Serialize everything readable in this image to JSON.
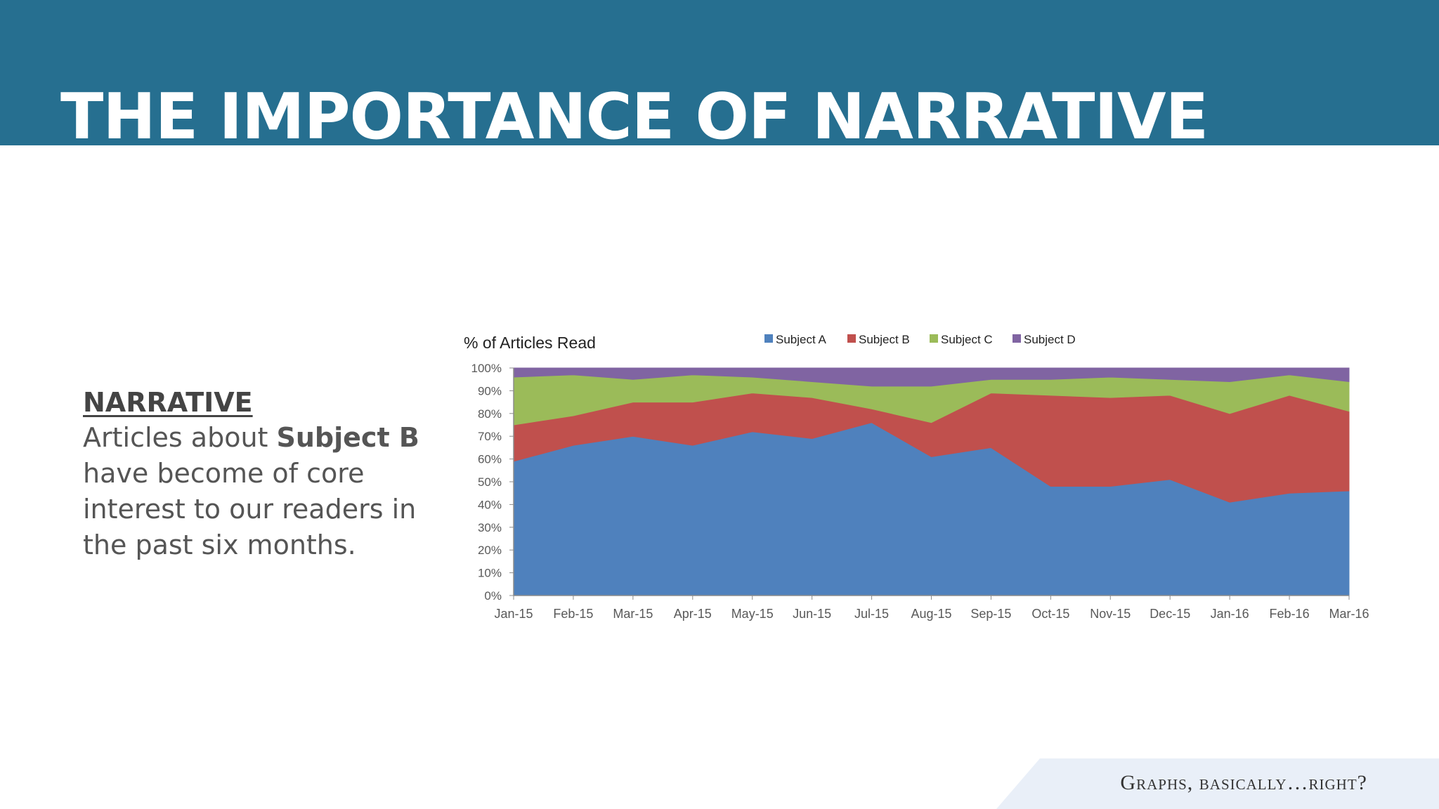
{
  "slide": {
    "title": "THE IMPORTANCE OF NARRATIVE",
    "footer": "Graphs, basically…right?"
  },
  "narrative": {
    "heading": "NARRATIVE",
    "body_before": "Articles about ",
    "body_bold": "Subject B",
    "body_after": " have become of core interest to our readers in the past six months."
  },
  "colors": {
    "header_band": "#266f90",
    "footer_ribbon": "#e9eff8"
  },
  "chart_data": {
    "type": "area",
    "stacked": true,
    "percent_stacked": true,
    "title": "% of Articles Read",
    "legend_position": "top",
    "grid": false,
    "ylim": [
      0,
      100
    ],
    "y_ticks": [
      "0%",
      "10%",
      "20%",
      "30%",
      "40%",
      "50%",
      "60%",
      "70%",
      "80%",
      "90%",
      "100%"
    ],
    "categories": [
      "Jan-15",
      "Feb-15",
      "Mar-15",
      "Apr-15",
      "May-15",
      "Jun-15",
      "Jul-15",
      "Aug-15",
      "Sep-15",
      "Oct-15",
      "Nov-15",
      "Dec-15",
      "Jan-16",
      "Feb-16",
      "Mar-16"
    ],
    "series": [
      {
        "name": "Subject A",
        "color": "#4f81bd",
        "values": [
          59,
          66,
          70,
          66,
          72,
          69,
          76,
          61,
          65,
          48,
          48,
          51,
          41,
          45,
          46
        ]
      },
      {
        "name": "Subject B",
        "color": "#c0504d",
        "values": [
          16,
          13,
          15,
          19,
          17,
          18,
          6,
          15,
          24,
          40,
          39,
          37,
          39,
          43,
          35
        ]
      },
      {
        "name": "Subject C",
        "color": "#9bbb59",
        "values": [
          21,
          18,
          10,
          12,
          7,
          7,
          10,
          16,
          6,
          7,
          9,
          7,
          14,
          9,
          13
        ]
      },
      {
        "name": "Subject D",
        "color": "#8064a2",
        "values": [
          4,
          3,
          5,
          3,
          4,
          6,
          8,
          8,
          5,
          5,
          4,
          5,
          6,
          3,
          6
        ]
      }
    ]
  }
}
